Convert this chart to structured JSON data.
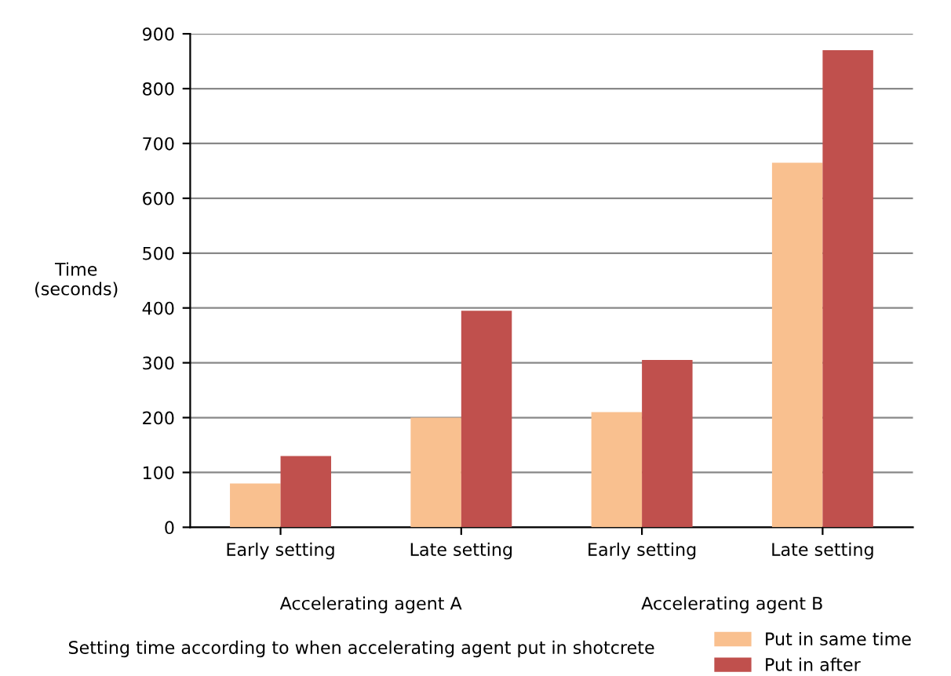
{
  "chart_data": {
    "type": "bar",
    "title": "Setting time according to when accelerating agent put in shotcrete",
    "ylabel": "Time\n(seconds)",
    "categories": [
      "Early setting",
      "Late setting",
      "Early setting",
      "Late setting"
    ],
    "series": [
      {
        "name": "Put in same time",
        "color": "#f9c08f",
        "values": [
          80,
          200,
          210,
          665
        ]
      },
      {
        "name": "Put in after",
        "color": "#c0504d",
        "values": [
          130,
          395,
          305,
          870
        ]
      }
    ],
    "annotations": [
      "Accelerating agent A",
      "Accelerating agent B"
    ],
    "ylim": [
      0,
      900
    ],
    "yticks": [
      0,
      100,
      200,
      300,
      400,
      500,
      600,
      700,
      800,
      900
    ],
    "grid": "y",
    "legend": "bottom right"
  }
}
